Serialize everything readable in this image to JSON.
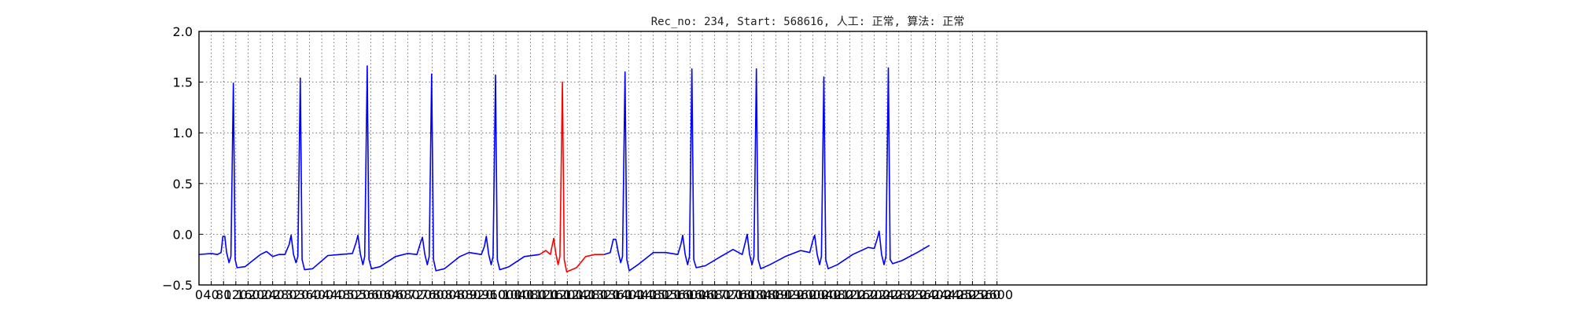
{
  "chart_data": {
    "type": "line",
    "title": "Rec_no: 234, Start: 568616, 人工: 正常, 算法: 正常",
    "xlabel": "",
    "ylabel": "",
    "xlim": [
      0,
      4000
    ],
    "ylim": [
      -0.5,
      2.0
    ],
    "grid": true,
    "legend": "none",
    "y_ticks": [
      -0.5,
      0.0,
      0.5,
      1.0,
      1.5,
      2.0
    ],
    "x_ticks": [
      0,
      40,
      80,
      120,
      160,
      200,
      240,
      280,
      320,
      360,
      400,
      440,
      480,
      520,
      560,
      600,
      640,
      680,
      720,
      760,
      800,
      840,
      880,
      920,
      960,
      1000,
      1040,
      1080,
      1120,
      1160,
      1200,
      1240,
      1280,
      1320,
      1360,
      1400,
      1440,
      1480,
      1520,
      1560,
      1600,
      1640,
      1680,
      1720,
      1760,
      1800,
      1840,
      1880,
      1920,
      1960,
      2000,
      2040,
      2080,
      2120,
      2160,
      2200,
      2240,
      2280,
      2320,
      2360,
      2400,
      2440,
      2480,
      2520,
      2560,
      2600
    ],
    "x_tick_labels": [
      "0",
      "40",
      "80",
      "120",
      "160",
      "200",
      "240",
      "280",
      "320",
      "360",
      "400",
      "440",
      "480",
      "520",
      "560",
      "600",
      "640",
      "680",
      "720",
      "760",
      "800",
      "840",
      "880",
      "920",
      "960",
      "1000",
      "1040",
      "1080",
      "1120",
      "1160",
      "1200",
      "1240",
      "1280",
      "1320",
      "1360",
      "1400",
      "1440",
      "1480",
      "1520",
      "1560",
      "1600",
      "1640",
      "1680",
      "1720",
      "1760",
      "1800",
      "1840",
      "1880",
      "1920",
      "1960",
      "2000",
      "2040",
      "2080",
      "2120",
      "2160",
      "2200",
      "2240",
      "2280",
      "2320",
      "2360",
      "2400",
      "2440",
      "2480",
      "2520",
      "2560",
      "2600"
    ],
    "series": [
      {
        "color": "#0000ff",
        "points": [
          [
            0,
            -0.2
          ],
          [
            40,
            -0.19
          ],
          [
            60,
            -0.2
          ],
          [
            72,
            -0.18
          ],
          [
            78,
            -0.02
          ],
          [
            84,
            -0.02
          ],
          [
            90,
            -0.18
          ],
          [
            98,
            -0.28
          ],
          [
            104,
            -0.22
          ],
          [
            112,
            1.49
          ],
          [
            118,
            -0.25
          ],
          [
            124,
            -0.33
          ],
          [
            150,
            -0.32
          ],
          [
            200,
            -0.2
          ],
          [
            220,
            -0.17
          ],
          [
            240,
            -0.22
          ],
          [
            260,
            -0.2
          ],
          [
            280,
            -0.2
          ],
          [
            294,
            -0.1
          ],
          [
            300,
            -0.01
          ],
          [
            308,
            -0.2
          ],
          [
            316,
            -0.28
          ],
          [
            322,
            -0.22
          ],
          [
            330,
            1.54
          ],
          [
            336,
            -0.25
          ],
          [
            344,
            -0.35
          ],
          [
            370,
            -0.34
          ],
          [
            420,
            -0.21
          ],
          [
            460,
            -0.2
          ],
          [
            500,
            -0.19
          ],
          [
            512,
            -0.08
          ],
          [
            518,
            -0.01
          ],
          [
            526,
            -0.2
          ],
          [
            534,
            -0.3
          ],
          [
            540,
            -0.22
          ],
          [
            548,
            1.66
          ],
          [
            554,
            -0.25
          ],
          [
            562,
            -0.34
          ],
          [
            590,
            -0.32
          ],
          [
            640,
            -0.22
          ],
          [
            680,
            -0.19
          ],
          [
            710,
            -0.2
          ],
          [
            720,
            -0.1
          ],
          [
            728,
            -0.03
          ],
          [
            736,
            -0.2
          ],
          [
            744,
            -0.3
          ],
          [
            750,
            -0.22
          ],
          [
            758,
            1.58
          ],
          [
            764,
            -0.25
          ],
          [
            772,
            -0.36
          ],
          [
            800,
            -0.34
          ],
          [
            850,
            -0.22
          ],
          [
            880,
            -0.18
          ],
          [
            920,
            -0.2
          ],
          [
            930,
            -0.12
          ],
          [
            936,
            -0.02
          ],
          [
            944,
            -0.2
          ],
          [
            952,
            -0.3
          ],
          [
            958,
            -0.22
          ],
          [
            966,
            1.57
          ],
          [
            972,
            -0.25
          ],
          [
            980,
            -0.35
          ],
          [
            1010,
            -0.32
          ],
          [
            1060,
            -0.22
          ],
          [
            1110,
            -0.2
          ]
        ]
      },
      {
        "color": "#ff0000",
        "points": [
          [
            1110,
            -0.2
          ],
          [
            1130,
            -0.16
          ],
          [
            1145,
            -0.2
          ],
          [
            1150,
            -0.12
          ],
          [
            1156,
            -0.04
          ],
          [
            1162,
            -0.18
          ],
          [
            1170,
            -0.3
          ],
          [
            1176,
            -0.22
          ],
          [
            1184,
            1.5
          ],
          [
            1190,
            -0.25
          ],
          [
            1198,
            -0.37
          ],
          [
            1230,
            -0.33
          ],
          [
            1260,
            -0.22
          ],
          [
            1290,
            -0.2
          ],
          [
            1320,
            -0.2
          ]
        ]
      },
      {
        "color": "#0000ff",
        "points": [
          [
            1320,
            -0.2
          ],
          [
            1340,
            -0.18
          ],
          [
            1350,
            -0.05
          ],
          [
            1358,
            -0.05
          ],
          [
            1366,
            -0.18
          ],
          [
            1374,
            -0.28
          ],
          [
            1380,
            -0.22
          ],
          [
            1388,
            1.6
          ],
          [
            1394,
            -0.25
          ],
          [
            1402,
            -0.36
          ],
          [
            1430,
            -0.3
          ],
          [
            1480,
            -0.18
          ],
          [
            1520,
            -0.18
          ],
          [
            1560,
            -0.2
          ],
          [
            1570,
            -0.1
          ],
          [
            1576,
            -0.01
          ],
          [
            1584,
            -0.2
          ],
          [
            1592,
            -0.3
          ],
          [
            1598,
            -0.22
          ],
          [
            1606,
            1.63
          ],
          [
            1612,
            -0.25
          ],
          [
            1620,
            -0.33
          ],
          [
            1650,
            -0.31
          ],
          [
            1700,
            -0.22
          ],
          [
            1740,
            -0.15
          ],
          [
            1770,
            -0.2
          ],
          [
            1780,
            -0.08
          ],
          [
            1786,
            0.0
          ],
          [
            1794,
            -0.2
          ],
          [
            1802,
            -0.3
          ],
          [
            1808,
            -0.22
          ],
          [
            1816,
            1.63
          ],
          [
            1822,
            -0.25
          ],
          [
            1830,
            -0.34
          ],
          [
            1860,
            -0.3
          ],
          [
            1910,
            -0.22
          ],
          [
            1960,
            -0.16
          ],
          [
            1990,
            -0.18
          ],
          [
            2000,
            -0.06
          ],
          [
            2006,
            -0.01
          ],
          [
            2014,
            -0.2
          ],
          [
            2022,
            -0.3
          ],
          [
            2028,
            -0.22
          ],
          [
            2036,
            1.55
          ],
          [
            2042,
            -0.25
          ],
          [
            2050,
            -0.34
          ],
          [
            2080,
            -0.3
          ],
          [
            2130,
            -0.2
          ],
          [
            2180,
            -0.13
          ],
          [
            2200,
            -0.14
          ],
          [
            2210,
            -0.04
          ],
          [
            2216,
            0.03
          ],
          [
            2224,
            -0.2
          ],
          [
            2232,
            -0.3
          ],
          [
            2238,
            -0.22
          ],
          [
            2246,
            1.64
          ],
          [
            2252,
            -0.25
          ],
          [
            2260,
            -0.29
          ],
          [
            2290,
            -0.26
          ],
          [
            2340,
            -0.18
          ],
          [
            2380,
            -0.11
          ]
        ]
      }
    ]
  }
}
